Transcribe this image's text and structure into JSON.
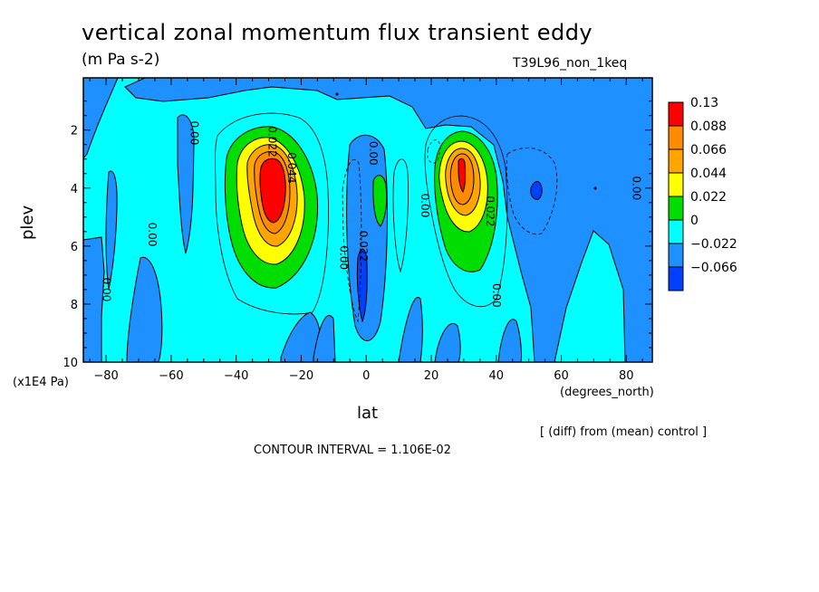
{
  "chart_data": {
    "type": "contour",
    "title": "vertical zonal momentum flux transient eddy",
    "units": "(m Pa s-2)",
    "run_label": "T39L96_non_1keq",
    "xlabel": "lat",
    "xunit": "(degrees_north)",
    "ylabel": "plev",
    "yunit": "(x1E4 Pa)",
    "xlim": [
      -87,
      88
    ],
    "ylim": [
      10,
      0.2
    ],
    "xticks": [
      -80,
      -60,
      -40,
      -20,
      0,
      20,
      40,
      60,
      80
    ],
    "yticks": [
      2,
      4,
      6,
      8,
      10
    ],
    "contour_interval": "CONTOUR INTERVAL = 1.106E-02",
    "note": "[ (diff) from (mean) control ]",
    "colorbar": {
      "labels": [
        "0.13",
        "0.088",
        "0.066",
        "0.044",
        "0.022",
        "0",
        "−0.022",
        "−0.066"
      ],
      "colors": [
        "#ff0000",
        "#ff8c00",
        "#ffa500",
        "#ffff00",
        "#00dd00",
        "#00ffff",
        "#1e90ff",
        "#0040ff"
      ]
    },
    "contour_labels": [
      {
        "lat": -30,
        "plev": 2.4,
        "text": "0.022"
      },
      {
        "lat": -24,
        "plev": 3.3,
        "text": "0.044"
      },
      {
        "lat": -54,
        "plev": 2.1,
        "text": "0.00"
      },
      {
        "lat": -67,
        "plev": 5.6,
        "text": "0.00"
      },
      {
        "lat": -81,
        "plev": 7.5,
        "text": "0.00"
      },
      {
        "lat": 1,
        "plev": 2.8,
        "text": "0.00"
      },
      {
        "lat": -8,
        "plev": 6.4,
        "text": "0.00"
      },
      {
        "lat": -2,
        "plev": 6.0,
        "text": "0.022"
      },
      {
        "lat": 17,
        "plev": 4.6,
        "text": "0.00"
      },
      {
        "lat": 37,
        "plev": 4.8,
        "text": "0.022"
      },
      {
        "lat": 39,
        "plev": 7.7,
        "text": "0.00"
      },
      {
        "lat": 82,
        "plev": 4.0,
        "text": "0.00"
      }
    ],
    "features": [
      {
        "center_lat": -30,
        "center_plev": 4.0,
        "peak": 0.13,
        "sign": "positive"
      },
      {
        "center_lat": 29,
        "center_plev": 3.5,
        "peak": 0.13,
        "sign": "positive"
      },
      {
        "center_lat": 4,
        "center_plev": 4.5,
        "value": 0.022,
        "sign": "positive"
      },
      {
        "center_lat": -2,
        "center_plev": 7.0,
        "value": -0.066,
        "sign": "negative"
      },
      {
        "center_lat": 52,
        "center_plev": 4.0,
        "value": -0.066,
        "sign": "negative"
      }
    ]
  }
}
